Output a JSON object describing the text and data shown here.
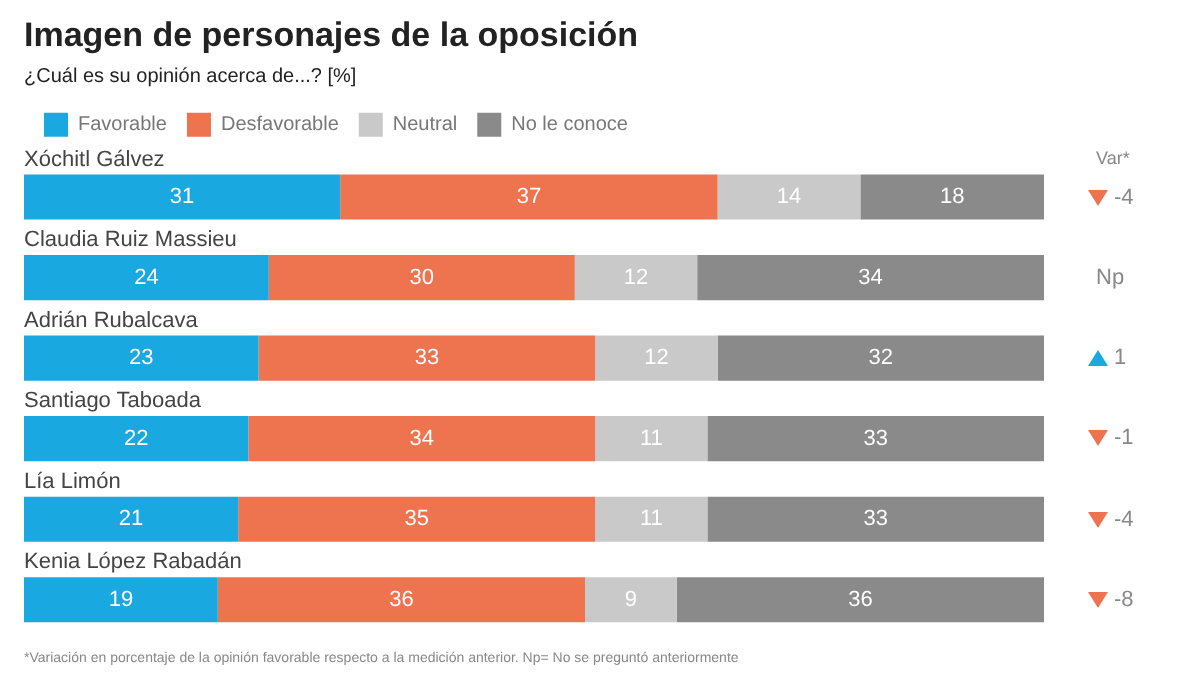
{
  "chart_data": {
    "type": "bar",
    "orientation": "horizontal",
    "stacked": true,
    "title": "Imagen de personajes de la oposición",
    "subtitle": "¿Cuál es su opinión acerca de...? [%]",
    "categories": [
      "Xóchitl Gálvez",
      "Claudia Ruiz Massieu",
      "Adrián Rubalcava",
      "Santiago Taboada",
      "Lía Limón",
      "Kenia López Rabadán"
    ],
    "series": [
      {
        "name": "Favorable",
        "color": "#1aa8e0",
        "values": [
          31,
          24,
          23,
          22,
          21,
          19
        ]
      },
      {
        "name": "Desfavorable",
        "color": "#ee7450",
        "values": [
          37,
          30,
          33,
          34,
          35,
          36
        ]
      },
      {
        "name": "Neutral",
        "color": "#c9c9c9",
        "values": [
          14,
          12,
          12,
          11,
          11,
          9
        ]
      },
      {
        "name": "No le conoce",
        "color": "#8a8a8a",
        "values": [
          18,
          34,
          32,
          33,
          33,
          36
        ]
      }
    ],
    "xlim": [
      0,
      100
    ],
    "tick_labels": "y",
    "legend": "top left",
    "data_labels": true,
    "annotations": [
      "Var*",
      "-4",
      "Np",
      "1",
      "-1",
      "-4",
      "-8",
      "*Variación en porcentaje de la opinión favorable respecto a la medición anterior. Np= No se preguntó anteriormente"
    ]
  }
}
